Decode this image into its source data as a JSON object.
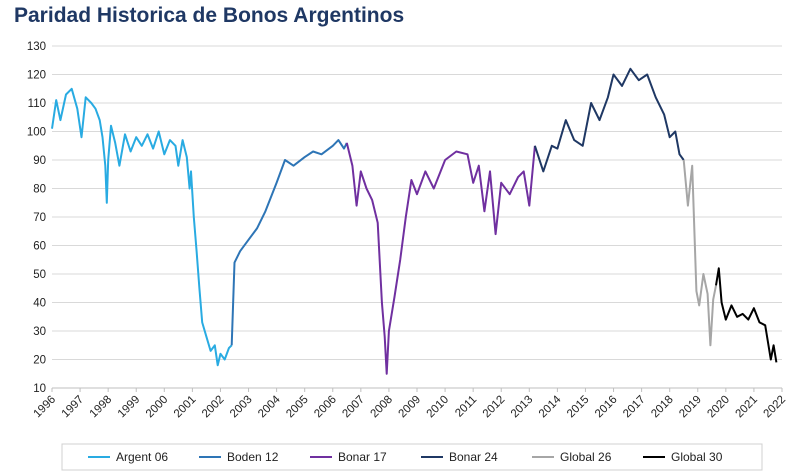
{
  "chart_data": {
    "type": "line",
    "title": "Paridad Historica de Bonos Argentinos",
    "xlabel": "",
    "ylabel": "",
    "xlim": [
      1996,
      2022
    ],
    "ylim": [
      10,
      130
    ],
    "yticks": [
      10,
      20,
      30,
      40,
      50,
      60,
      70,
      80,
      90,
      100,
      110,
      120,
      130
    ],
    "xticks": [
      "1996",
      "1997",
      "1998",
      "1999",
      "2000",
      "2001",
      "2002",
      "2003",
      "2004",
      "2005",
      "2006",
      "2007",
      "2008",
      "2009",
      "2010",
      "2011",
      "2012",
      "2013",
      "2014",
      "2015",
      "2016",
      "2017",
      "2018",
      "2019",
      "2020",
      "2021",
      "2022"
    ],
    "grid": "horizontal",
    "legend_position": "bottom",
    "series": [
      {
        "name": "Argent 06",
        "color": "#29abe2",
        "x": [
          1996.0,
          1996.15,
          1996.3,
          1996.5,
          1996.7,
          1996.9,
          1997.05,
          1997.2,
          1997.4,
          1997.55,
          1997.7,
          1997.8,
          1997.9,
          1997.95,
          1998.0,
          1998.1,
          1998.25,
          1998.4,
          1998.6,
          1998.8,
          1999.0,
          1999.2,
          1999.4,
          1999.6,
          1999.8,
          2000.0,
          2000.2,
          2000.4,
          2000.5,
          2000.65,
          2000.8,
          2000.9,
          2000.95,
          2001.05,
          2001.15,
          2001.25,
          2001.35,
          2001.5,
          2001.65,
          2001.8,
          2001.9,
          2002.0,
          2002.15,
          2002.3,
          2002.4
        ],
        "y": [
          101,
          111,
          104,
          113,
          115,
          108,
          98,
          112,
          110,
          108,
          104,
          98,
          88,
          75,
          90,
          102,
          96,
          88,
          99,
          93,
          98,
          95,
          99,
          94,
          100,
          92,
          97,
          95,
          88,
          97,
          91,
          80,
          86,
          70,
          58,
          45,
          33,
          28,
          23,
          25,
          18,
          22,
          20,
          24,
          25
        ]
      },
      {
        "name": "Boden 12",
        "color": "#2e75b6",
        "x": [
          2002.4,
          2002.5,
          2002.7,
          2003.0,
          2003.3,
          2003.6,
          2004.0,
          2004.3,
          2004.6,
          2005.0,
          2005.3,
          2005.6,
          2006.0,
          2006.2,
          2006.4,
          2006.5
        ],
        "y": [
          25,
          54,
          58,
          62,
          66,
          72,
          82,
          90,
          88,
          91,
          93,
          92,
          95,
          97,
          94,
          96
        ]
      },
      {
        "name": "Bonar 17",
        "color": "#7030a0",
        "x": [
          2006.5,
          2006.7,
          2006.85,
          2007.0,
          2007.2,
          2007.4,
          2007.6,
          2007.75,
          2007.85,
          2007.92,
          2008.0,
          2008.2,
          2008.4,
          2008.6,
          2008.8,
          2009.0,
          2009.3,
          2009.6,
          2010.0,
          2010.4,
          2010.8,
          2011.0,
          2011.2,
          2011.4,
          2011.6,
          2011.8,
          2012.0,
          2012.3,
          2012.6,
          2012.8,
          2013.0,
          2013.2
        ],
        "y": [
          96,
          88,
          74,
          86,
          80,
          76,
          68,
          40,
          28,
          15,
          30,
          42,
          55,
          70,
          83,
          78,
          86,
          80,
          90,
          93,
          92,
          82,
          88,
          72,
          86,
          64,
          82,
          78,
          84,
          86,
          74,
          95
        ]
      },
      {
        "name": "Bonar 24",
        "color": "#1f3864",
        "x": [
          2013.2,
          2013.5,
          2013.8,
          2014.0,
          2014.3,
          2014.6,
          2014.9,
          2015.2,
          2015.5,
          2015.8,
          2016.0,
          2016.3,
          2016.6,
          2016.9,
          2017.2,
          2017.5,
          2017.8,
          2018.0,
          2018.2,
          2018.35,
          2018.5
        ],
        "y": [
          95,
          86,
          95,
          94,
          104,
          97,
          95,
          110,
          104,
          112,
          120,
          116,
          122,
          118,
          120,
          112,
          106,
          98,
          100,
          92,
          90
        ]
      },
      {
        "name": "Global 26",
        "color": "#a6a6a6",
        "x": [
          2018.5,
          2018.65,
          2018.8,
          2018.95,
          2019.05,
          2019.2,
          2019.35,
          2019.45,
          2019.55,
          2019.65
        ],
        "y": [
          90,
          74,
          88,
          44,
          39,
          50,
          43,
          25,
          41,
          46
        ]
      },
      {
        "name": "Global 30",
        "color": "#000000",
        "x": [
          2019.65,
          2019.75,
          2019.85,
          2020.0,
          2020.2,
          2020.4,
          2020.6,
          2020.8,
          2021.0,
          2021.2,
          2021.4,
          2021.5,
          2021.6,
          2021.7,
          2021.8
        ],
        "y": [
          46,
          52,
          40,
          34,
          39,
          35,
          36,
          34,
          38,
          33,
          32,
          26,
          20,
          25,
          19
        ]
      }
    ]
  }
}
